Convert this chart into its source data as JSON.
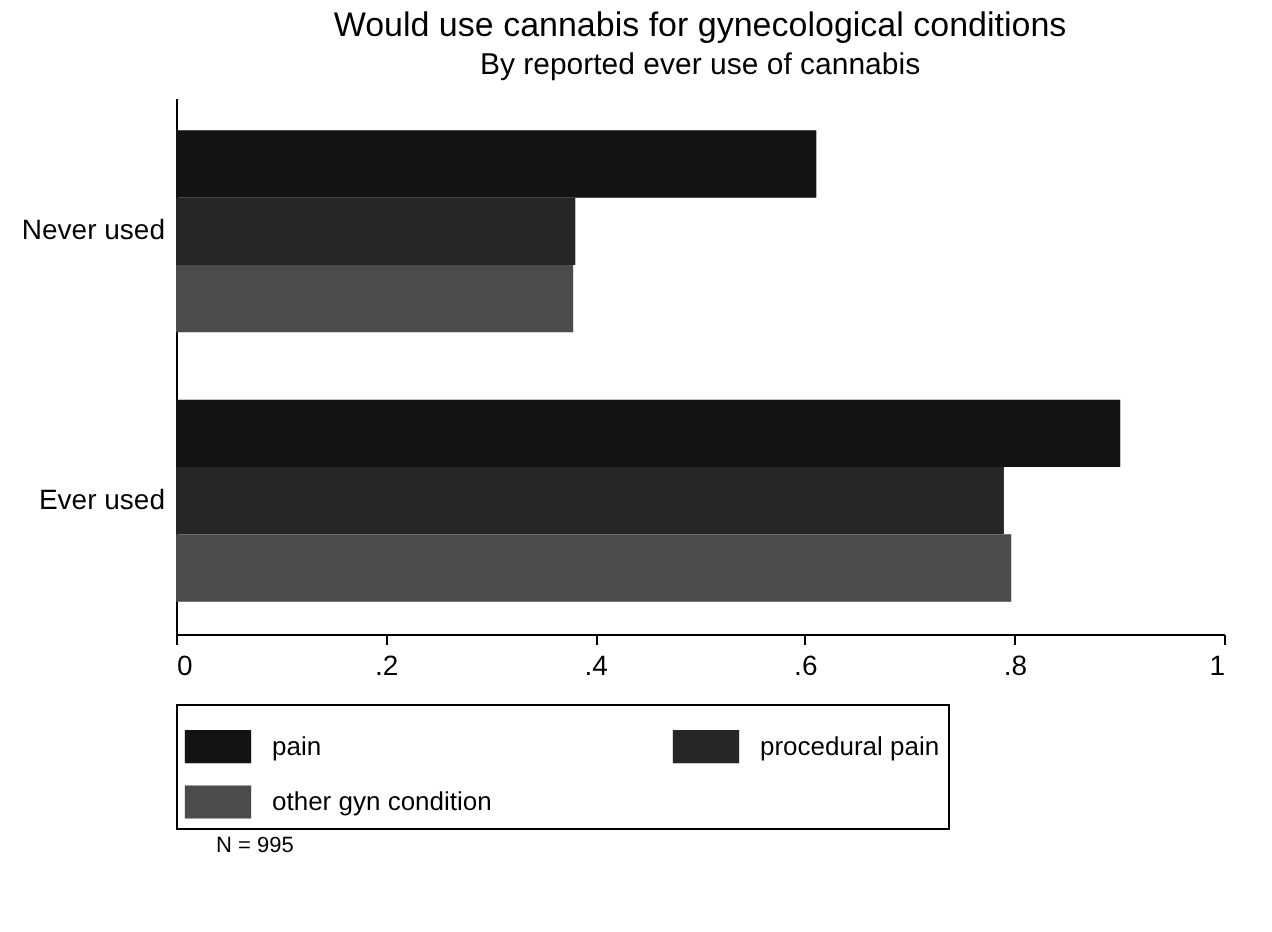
{
  "chart_data": {
    "type": "bar",
    "orientation": "horizontal",
    "title": "Would use cannabis for gynecological conditions",
    "subtitle": "By reported ever use of cannabis",
    "categories": [
      "Never used",
      "Ever used"
    ],
    "series": [
      {
        "name": "pain",
        "color": "#131313",
        "values": [
          0.611,
          0.901
        ]
      },
      {
        "name": "procedural pain",
        "color": "#262626",
        "values": [
          0.381,
          0.79
        ]
      },
      {
        "name": "other gyn condition",
        "color": "#4b4b4b",
        "values": [
          0.379,
          0.797
        ]
      }
    ],
    "xlim": [
      0,
      1
    ],
    "xticks": [
      0,
      {
        "value": 0.2,
        "label": ".2"
      },
      {
        "value": 0.4,
        "label": ".4"
      },
      {
        "value": 0.6,
        "label": ".6"
      },
      {
        "value": 0.8,
        "label": ".8"
      },
      1
    ],
    "grid": false,
    "legend": "bottom",
    "annotations": [
      "N = 995"
    ]
  }
}
